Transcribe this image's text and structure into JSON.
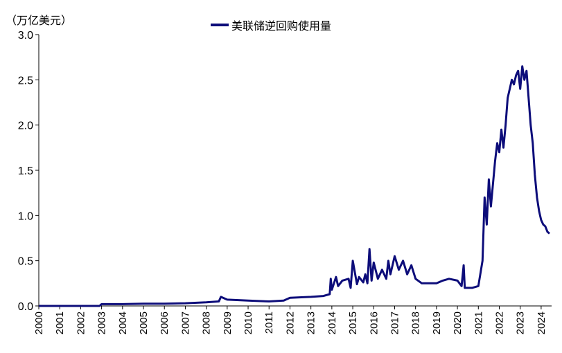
{
  "chart_data": {
    "type": "line",
    "title": "",
    "ylabel": "（万亿美元）",
    "xlabel": "",
    "ylim": [
      0,
      3.0
    ],
    "xlim": [
      2000,
      2024.5
    ],
    "grid": false,
    "legend_position": "top-center",
    "yticks": [
      "0.0",
      "0.5",
      "1.0",
      "1.5",
      "2.0",
      "2.5",
      "3.0"
    ],
    "xticks": [
      "2000",
      "2001",
      "2002",
      "2003",
      "2004",
      "2005",
      "2006",
      "2007",
      "2008",
      "2009",
      "2010",
      "2011",
      "2012",
      "2013",
      "2014",
      "2015",
      "2016",
      "2017",
      "2018",
      "2019",
      "2020",
      "2021",
      "2022",
      "2023",
      "2024"
    ],
    "series": [
      {
        "name": "美联储逆回购使用量",
        "color": "#0d0d7a",
        "x": [
          2000.0,
          2002.9,
          2003.0,
          2004.0,
          2005.0,
          2006.0,
          2007.0,
          2008.0,
          2008.6,
          2008.7,
          2009.0,
          2010.0,
          2011.0,
          2011.7,
          2012.0,
          2013.0,
          2013.6,
          2013.9,
          2013.95,
          2014.0,
          2014.2,
          2014.3,
          2014.5,
          2014.8,
          2014.9,
          2015.0,
          2015.2,
          2015.3,
          2015.5,
          2015.6,
          2015.7,
          2015.8,
          2015.9,
          2016.0,
          2016.2,
          2016.4,
          2016.6,
          2016.7,
          2016.8,
          2017.0,
          2017.2,
          2017.4,
          2017.6,
          2017.8,
          2018.0,
          2018.3,
          2018.5,
          2019.0,
          2019.3,
          2019.6,
          2020.0,
          2020.2,
          2020.3,
          2020.35,
          2020.5,
          2020.7,
          2021.0,
          2021.2,
          2021.3,
          2021.4,
          2021.5,
          2021.6,
          2021.8,
          2021.9,
          2022.0,
          2022.1,
          2022.2,
          2022.3,
          2022.4,
          2022.5,
          2022.6,
          2022.7,
          2022.8,
          2022.9,
          2023.0,
          2023.1,
          2023.2,
          2023.3,
          2023.4,
          2023.5,
          2023.6,
          2023.7,
          2023.8,
          2023.9,
          2024.0,
          2024.1,
          2024.2,
          2024.3,
          2024.4
        ],
        "values": [
          0.0,
          0.0,
          0.02,
          0.02,
          0.025,
          0.025,
          0.03,
          0.04,
          0.05,
          0.1,
          0.07,
          0.06,
          0.05,
          0.06,
          0.09,
          0.1,
          0.11,
          0.13,
          0.3,
          0.18,
          0.32,
          0.22,
          0.28,
          0.3,
          0.2,
          0.5,
          0.24,
          0.32,
          0.26,
          0.35,
          0.25,
          0.63,
          0.28,
          0.48,
          0.3,
          0.4,
          0.3,
          0.5,
          0.35,
          0.55,
          0.4,
          0.5,
          0.35,
          0.45,
          0.3,
          0.25,
          0.25,
          0.25,
          0.28,
          0.3,
          0.28,
          0.22,
          0.45,
          0.2,
          0.2,
          0.2,
          0.22,
          0.5,
          1.2,
          0.9,
          1.4,
          1.1,
          1.6,
          1.8,
          1.7,
          1.95,
          1.75,
          2.0,
          2.3,
          2.4,
          2.5,
          2.45,
          2.55,
          2.6,
          2.4,
          2.65,
          2.5,
          2.6,
          2.3,
          2.0,
          1.8,
          1.45,
          1.2,
          1.05,
          0.95,
          0.9,
          0.88,
          0.82,
          0.8
        ]
      }
    ]
  }
}
